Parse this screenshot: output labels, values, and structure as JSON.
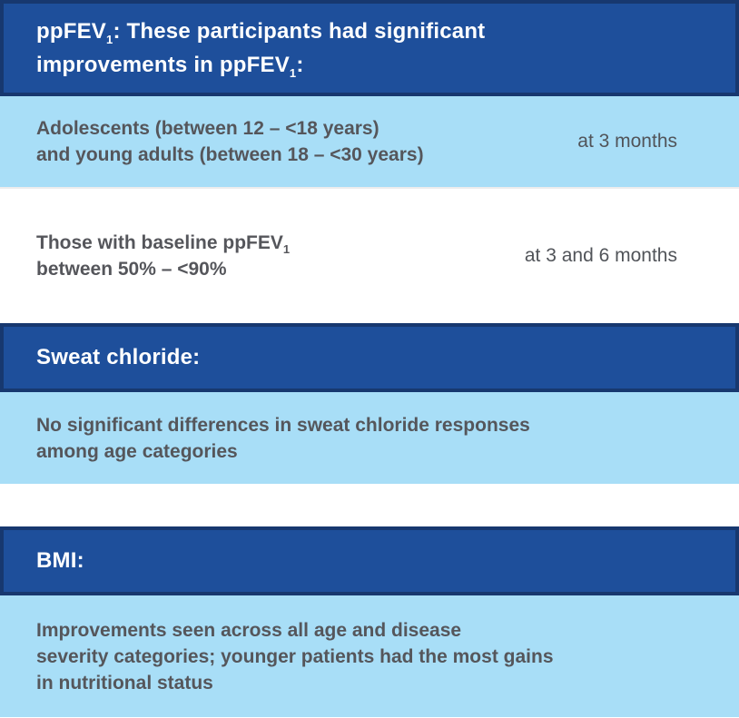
{
  "palette": {
    "header_bg": "#1e4f9b",
    "header_border": "#17386f",
    "row_light_blue": "#a8def7",
    "body_text_gray": "#55565b",
    "header_text": "#ffffff"
  },
  "sections": {
    "ppfev": {
      "header": {
        "line1": {
          "pre": "ppFEV",
          "sub": "1",
          "rest": ": These participants had significant"
        },
        "line2": {
          "pre": "improvements in ppFEV",
          "sub": "1",
          "rest": ":"
        }
      },
      "rows": {
        "age_groups": {
          "line1": "Adolescents (between 12 – <18 years)",
          "line2": "and young adults (between 18 – <30 years)",
          "timing": "at 3 months"
        },
        "baseline": {
          "line1_pre": "Those with baseline ppFEV",
          "line1_sub": "1",
          "line2": "between 50% – <90%",
          "timing": "at 3 and 6 months"
        }
      }
    },
    "sweat_chloride": {
      "header": "Sweat chloride:",
      "row": {
        "line1": "No significant differences in sweat chloride responses",
        "line2": "among age categories"
      }
    },
    "bmi": {
      "header": "BMI:",
      "row": {
        "line1": "Improvements seen across all age and disease",
        "line2": "severity categories; younger patients had the most gains",
        "line3": "in nutritional status"
      }
    }
  }
}
